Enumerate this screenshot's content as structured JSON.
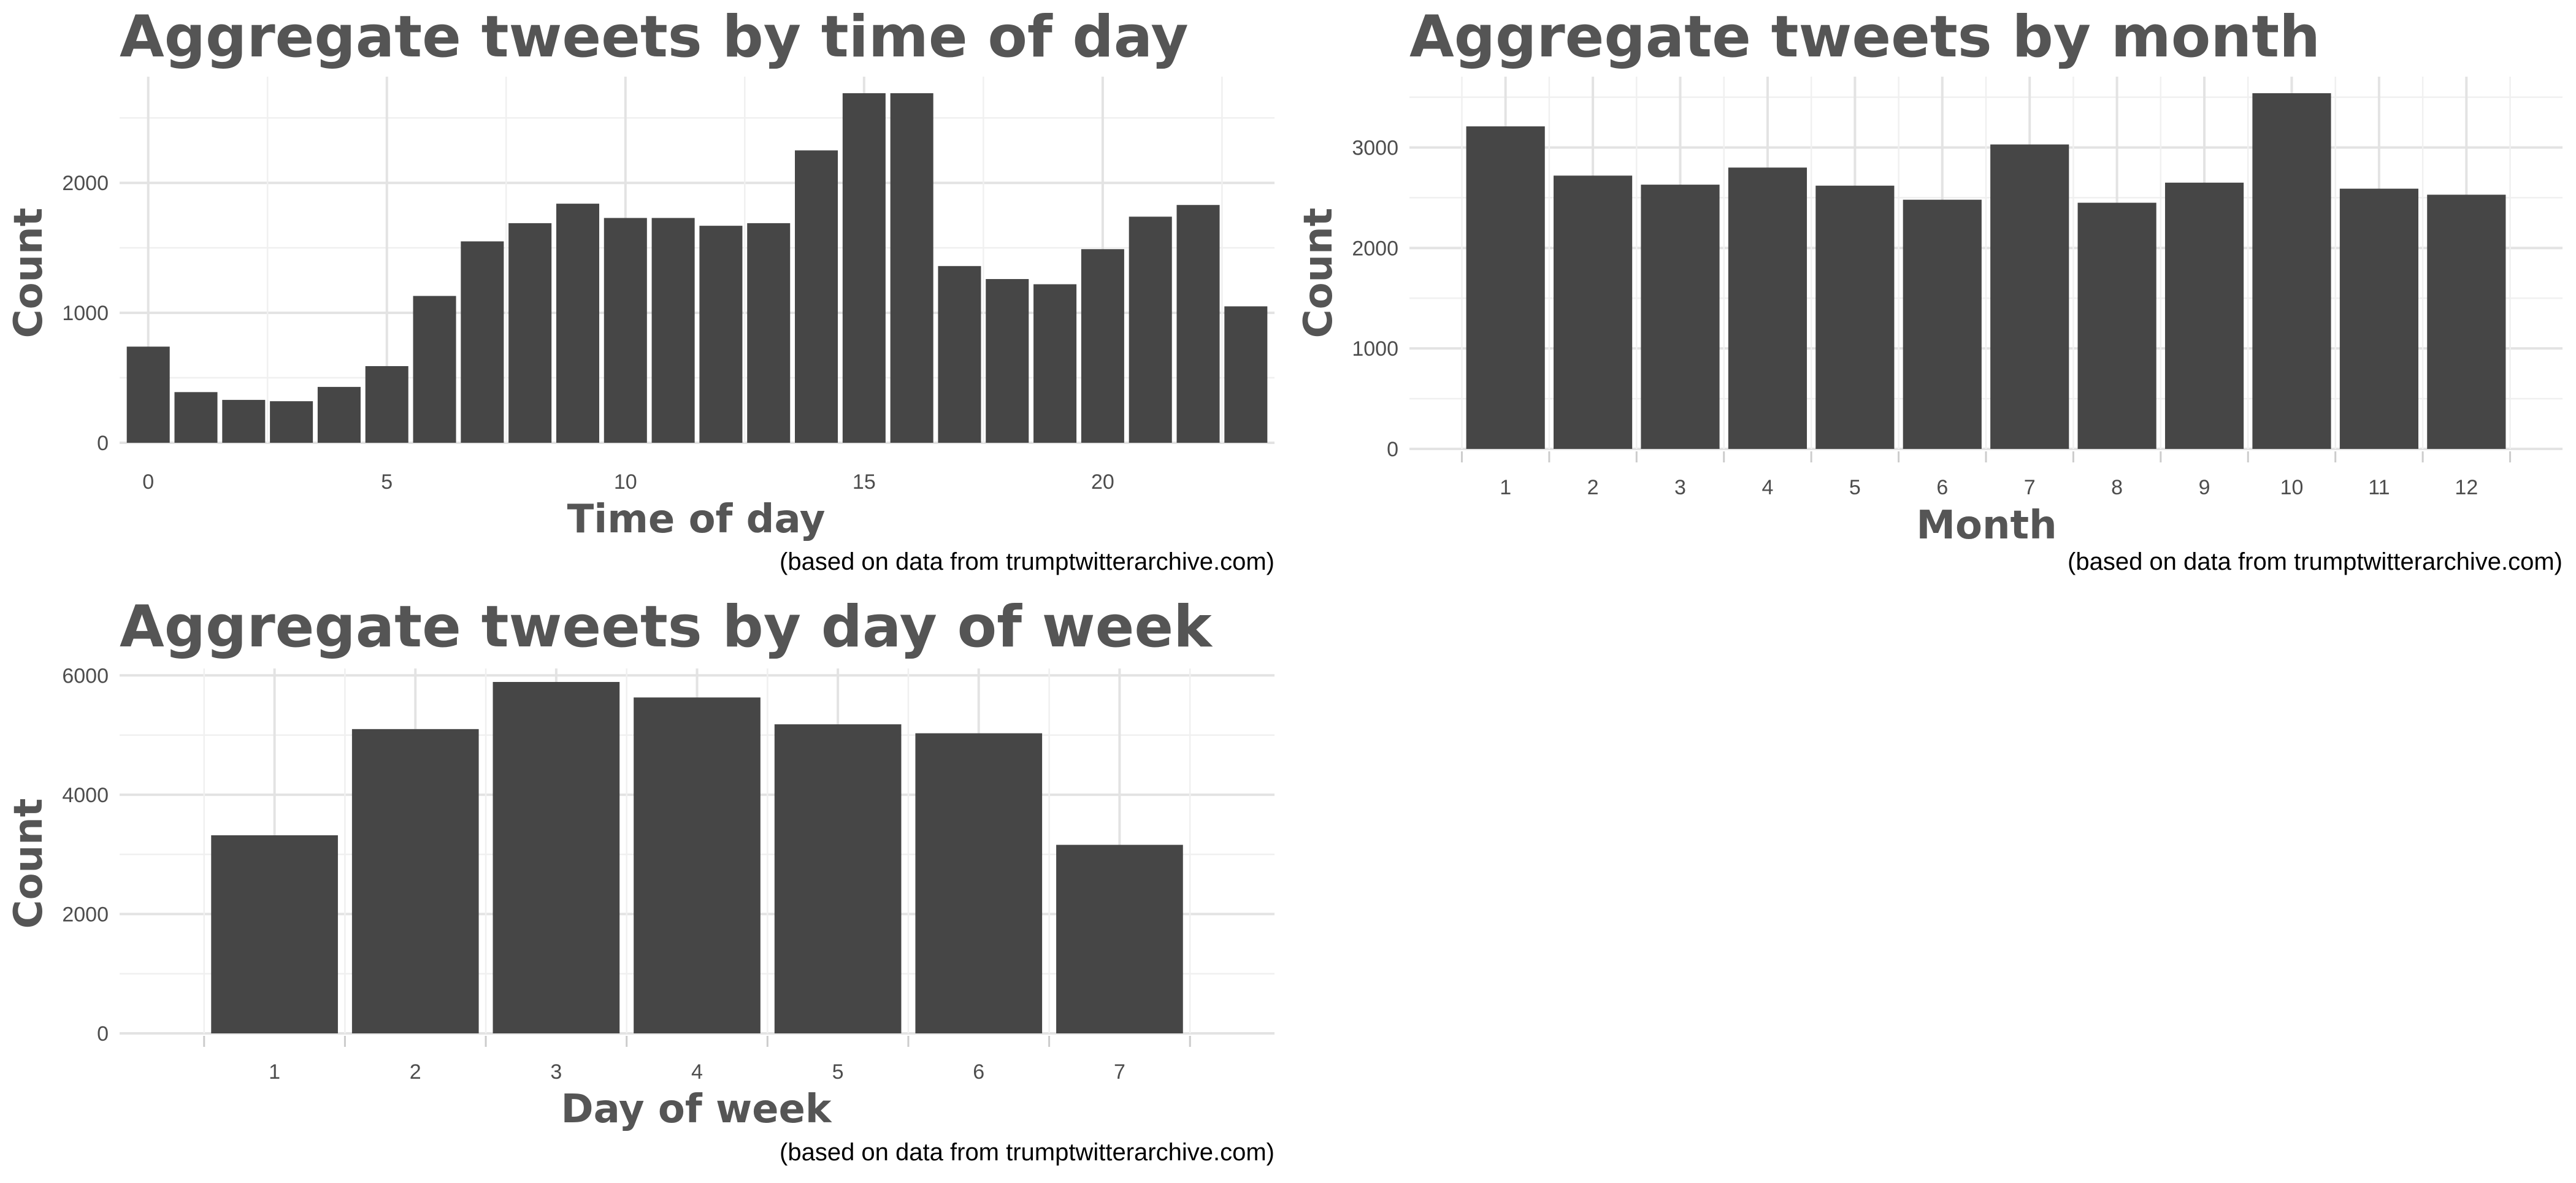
{
  "colors": {
    "bar": "#464646",
    "title": "#555555",
    "grid_major": "#e3e3e3",
    "grid_minor": "#f0f0f0"
  },
  "chart_data": [
    {
      "type": "bar",
      "title": "Aggregate tweets by time of day",
      "xlabel": "Time of day",
      "ylabel": "Count",
      "caption": "(based on data from trumptwitterarchive.com)",
      "x": [
        0,
        1,
        2,
        3,
        4,
        5,
        6,
        7,
        8,
        9,
        10,
        11,
        12,
        13,
        14,
        15,
        16,
        17,
        18,
        19,
        20,
        21,
        22,
        23
      ],
      "values": [
        740,
        390,
        330,
        320,
        430,
        590,
        1130,
        1550,
        1690,
        1840,
        1730,
        1730,
        1670,
        1690,
        2250,
        2690,
        2690,
        1360,
        1260,
        1220,
        1490,
        1740,
        1830,
        1050
      ],
      "xlim": [
        -0.6,
        23.6
      ],
      "ylim": [
        0,
        2690
      ],
      "xticks": [
        "0",
        "5",
        "10",
        "15",
        "20"
      ],
      "yticks": [
        "0",
        "1000",
        "2000"
      ],
      "grid": true
    },
    {
      "type": "bar",
      "title": "Aggregate tweets by month",
      "xlabel": "Month",
      "ylabel": "Count",
      "caption": "(based on data from trumptwitterarchive.com)",
      "categories": [
        "1",
        "2",
        "3",
        "4",
        "5",
        "6",
        "7",
        "8",
        "9",
        "10",
        "11",
        "12"
      ],
      "values": [
        3210,
        2720,
        2630,
        2800,
        2620,
        2480,
        3030,
        2450,
        2650,
        3540,
        2590,
        2530
      ],
      "ylim": [
        0,
        3540
      ],
      "yticks": [
        "0",
        "1000",
        "2000",
        "3000"
      ],
      "grid": true
    },
    {
      "type": "bar",
      "title": "Aggregate tweets by day of week",
      "xlabel": "Day of week",
      "ylabel": "Count",
      "caption": "(based on data from trumptwitterarchive.com)",
      "categories": [
        "1",
        "2",
        "3",
        "4",
        "5",
        "6",
        "7"
      ],
      "values": [
        3320,
        5100,
        5890,
        5630,
        5180,
        5030,
        3160
      ],
      "ylim": [
        0,
        5890
      ],
      "yticks": [
        "0",
        "2000",
        "4000",
        "6000"
      ],
      "grid": true
    }
  ]
}
